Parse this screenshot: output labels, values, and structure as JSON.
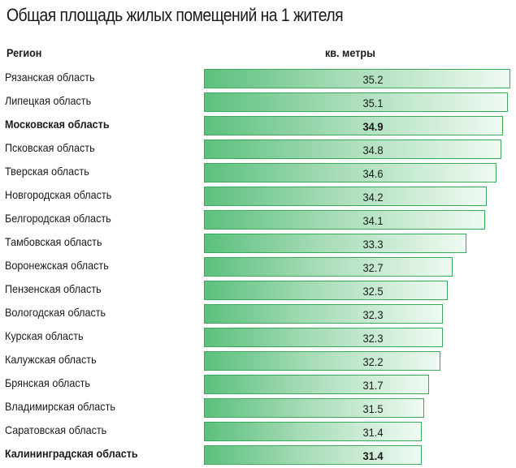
{
  "title": "Общая площадь жилых помещений на 1 жителя",
  "header": {
    "region_label": "Регион",
    "unit_label": "кв. метры"
  },
  "chart_data": {
    "type": "bar",
    "title": "Общая площадь жилых помещений на 1 жителя",
    "xlabel": "Регион",
    "ylabel": "кв. метры",
    "orientation": "horizontal",
    "categories": [
      "Рязанская область",
      "Липецкая область",
      "Московская область",
      "Псковская область",
      "Тверская область",
      "Новгородская область",
      "Белгородская область",
      "Тамбовская область",
      "Воронежская область",
      "Пензенская область",
      "Вологодская область",
      "Курская область",
      "Калужская область",
      "Брянская область",
      "Владимирская область",
      "Саратовская область",
      "Калининградская область"
    ],
    "values": [
      35.2,
      35.1,
      34.9,
      34.8,
      34.6,
      34.2,
      34.1,
      33.3,
      32.7,
      32.5,
      32.3,
      32.3,
      32.2,
      31.7,
      31.5,
      31.4,
      31.4
    ],
    "value_labels": [
      "35.2",
      "35.1",
      "34.9",
      "34.8",
      "34.6",
      "34.2",
      "34.1",
      "33.3",
      "32.7",
      "32.5",
      "32.3",
      "32.3",
      "32.2",
      "31.7",
      "31.5",
      "31.4",
      "31.4"
    ],
    "highlighted": [
      "Московская область",
      "Калининградская область"
    ],
    "bar_color": "#5cc07e",
    "bar_border_color": "#39a95a",
    "grid": false,
    "legend": "none"
  }
}
